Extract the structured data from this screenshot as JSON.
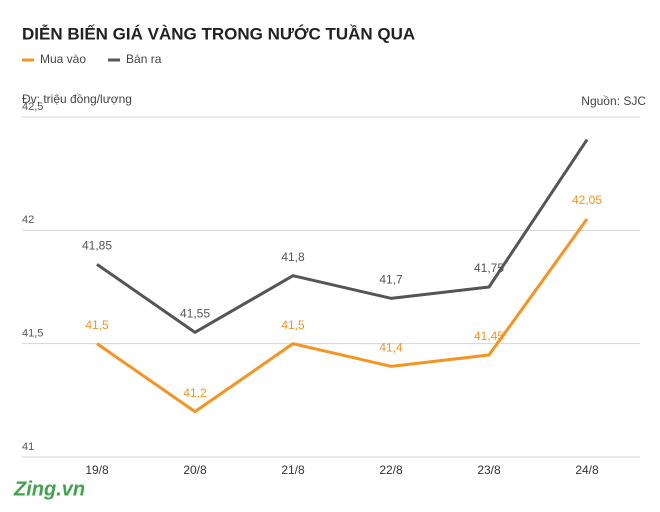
{
  "chart_data": {
    "type": "line",
    "title": "DIỄN BIẾN GIÁ VÀNG TRONG NƯỚC TUẦN QUA",
    "y_axis_label": "Đv: triệu đồng/lượng",
    "source": "Nguồn: SJC",
    "logo": "Zing.vn",
    "categories": [
      "19/8",
      "20/8",
      "21/8",
      "22/8",
      "23/8",
      "24/8"
    ],
    "series": [
      {
        "name": "Mua vào",
        "color": "#f7931e",
        "values": [
          41.5,
          41.2,
          41.5,
          41.4,
          41.45,
          42.05
        ],
        "value_labels": [
          "41,5",
          "41,2",
          "41,5",
          "41,4",
          "41,45",
          "42,05"
        ]
      },
      {
        "name": "Bán ra",
        "color": "#555555",
        "values": [
          41.85,
          41.55,
          41.8,
          41.7,
          41.75,
          42.4
        ],
        "value_labels": [
          "41,85",
          "41,55",
          "41,8",
          "41,7",
          "41,75",
          null
        ]
      }
    ],
    "ylim": [
      41,
      42.5
    ],
    "yticks": [
      41,
      {
        "value": 41.5,
        "label": "41,5"
      },
      42,
      {
        "value": 42.5,
        "label": "42,5"
      }
    ],
    "grid": true
  }
}
